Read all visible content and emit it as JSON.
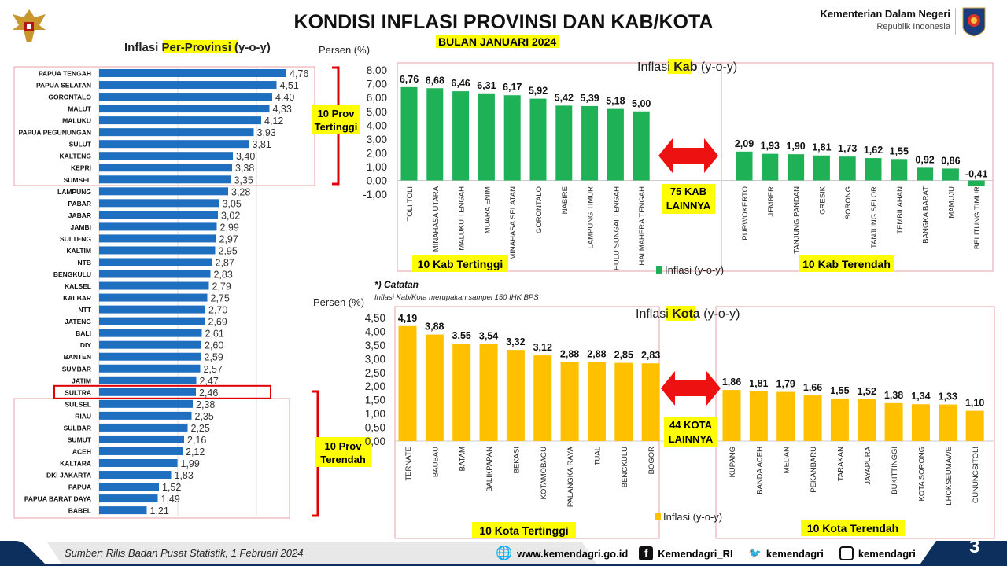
{
  "header": {
    "title": "KONDISI INFLASI PROVINSI DAN KAB/KOTA",
    "subtitle": "BULAN JANUARI 2024",
    "ministry_name": "Kementerian Dalam Negeri",
    "ministry_sub": "Republik Indonesia"
  },
  "colors": {
    "province_bar": "#1f6fc0",
    "kab_bar": "#1fb156",
    "kota_bar": "#ffc000",
    "highlight": "#ffff00",
    "box": "#e8a0a8",
    "bracket": "#e00000"
  },
  "chart_data": [
    {
      "type": "bar",
      "orientation": "horizontal",
      "title_prefix": "Inflasi ",
      "title_highlight": "Per-Provinsi",
      "title_suffix": " (y-o-y)",
      "categories": [
        "PAPUA TENGAH",
        "PAPUA SELATAN",
        "GORONTALO",
        "MALUT",
        "MALUKU",
        "PAPUA PEGUNUNGAN",
        "SULUT",
        "KALTENG",
        "KEPRI",
        "SUMSEL",
        "LAMPUNG",
        "PABAR",
        "JABAR",
        "JAMBI",
        "SULTENG",
        "KALTIM",
        "NTB",
        "BENGKULU",
        "KALSEL",
        "KALBAR",
        "NTT",
        "JATENG",
        "BALI",
        "DIY",
        "BANTEN",
        "SUMBAR",
        "JATIM",
        "SULTRA",
        "SULSEL",
        "RIAU",
        "SULBAR",
        "SUMUT",
        "ACEH",
        "KALTARA",
        "DKI JAKARTA",
        "PAPUA",
        "PAPUA BARAT DAYA",
        "BABEL"
      ],
      "values": [
        4.76,
        4.51,
        4.4,
        4.33,
        4.12,
        3.93,
        3.81,
        3.4,
        3.38,
        3.35,
        3.28,
        3.05,
        3.02,
        2.99,
        2.97,
        2.95,
        2.87,
        2.83,
        2.79,
        2.75,
        2.7,
        2.69,
        2.61,
        2.6,
        2.59,
        2.57,
        2.47,
        2.46,
        2.38,
        2.35,
        2.25,
        2.16,
        2.12,
        1.99,
        1.83,
        1.52,
        1.49,
        1.21
      ],
      "highlighted": "SULTRA",
      "group_high_label_1": "10 Prov",
      "group_high_label_2": "Tertinggi",
      "group_low_label_1": "10 Prov",
      "group_low_label_2": "Terendah"
    },
    {
      "type": "bar",
      "title_prefix": "Inflasi ",
      "title_highlight": "Kab",
      "title_suffix": " (y-o-y)",
      "ylabel": "Persen (%)",
      "ylim": [
        -1,
        8
      ],
      "yticks": [
        8,
        7,
        6,
        5,
        4,
        3,
        2,
        1,
        0,
        -1
      ],
      "legend": "Inflasi (y-o-y)",
      "high": {
        "label": "10 Kab Tertinggi",
        "categories": [
          "TOLI TOLI",
          "MINAHASA UTARA",
          "MALUKU TENGAH",
          "MUARA ENIM",
          "MINAHASA SELATAN",
          "GORONTALO",
          "NABIRE",
          "LAMPUNG TIMUR",
          "HULU SUNGAI TENGAH",
          "HALMAHERA TENGAH"
        ],
        "values": [
          6.76,
          6.68,
          6.46,
          6.31,
          6.17,
          5.92,
          5.42,
          5.39,
          5.18,
          5.0
        ]
      },
      "low": {
        "label": "10 Kab Terendah",
        "categories": [
          "PURWOKERTO",
          "JEMBER",
          "TANJUNG PANDAN",
          "GRESIK",
          "SORONG",
          "TANJUNG SELOR",
          "TEMBILAHAN",
          "BANGKA BARAT",
          "MAMUJU",
          "BELITUNG TIMUR"
        ],
        "values": [
          2.09,
          1.93,
          1.9,
          1.81,
          1.73,
          1.62,
          1.55,
          0.92,
          0.86,
          -0.41
        ]
      },
      "others_1": "75 KAB",
      "others_2": "LAINNYA"
    },
    {
      "type": "bar",
      "title_prefix": "Inflasi ",
      "title_highlight": "Kota",
      "title_suffix": " (y-o-y)",
      "ylabel": "Persen (%)",
      "ylim": [
        0,
        4.5
      ],
      "yticks": [
        4.5,
        4,
        3.5,
        3,
        2.5,
        2,
        1.5,
        1,
        0.5,
        0
      ],
      "legend": "Inflasi (y-o-y)",
      "high": {
        "label": "10 Kota Tertinggi",
        "categories": [
          "TERNATE",
          "BAUBAU",
          "BATAM",
          "BALIKPAPAN",
          "BEKASI",
          "KOTAMOBAGU",
          "PALANGKA RAYA",
          "TUAL",
          "BENGKULU",
          "BOGOR"
        ],
        "values": [
          4.19,
          3.88,
          3.55,
          3.54,
          3.32,
          3.12,
          2.88,
          2.88,
          2.85,
          2.83
        ]
      },
      "low": {
        "label": "10 Kota Terendah",
        "categories": [
          "KUPANG",
          "BANDA ACEH",
          "MEDAN",
          "PEKANBARU",
          "TARAKAN",
          "JAYAPURA",
          "BUKITTINGGI",
          "KOTA SORONG",
          "LHOKSEUMAWE",
          "GUNUNGSITOLI"
        ],
        "values": [
          1.86,
          1.81,
          1.79,
          1.66,
          1.55,
          1.52,
          1.38,
          1.34,
          1.33,
          1.1
        ]
      },
      "others_1": "44 KOTA",
      "others_2": "LAINNYA"
    }
  ],
  "note": {
    "title": "*) Catatan",
    "text": "Inflasi Kab/Kota merupakan sampel 150 IHK BPS"
  },
  "footer": {
    "source": "Sumber: Rilis Badan Pusat Statistik,  1 Februari 2024",
    "website": "www.kemendagri.go.id",
    "facebook": "Kemendagri_RI",
    "twitter": "kemendagri",
    "instagram": "kemendagri",
    "page": "3"
  }
}
